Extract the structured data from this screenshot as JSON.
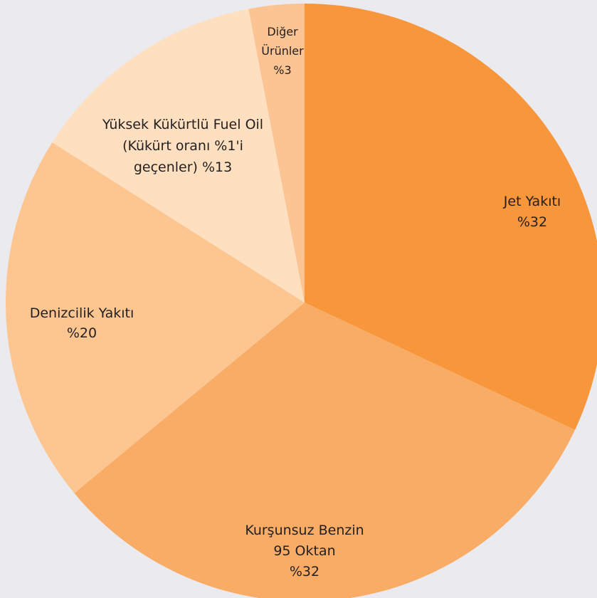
{
  "chart_data": {
    "type": "pie",
    "categories": [
      [
        "Jet Yakıtı"
      ],
      [
        "Kurşunsuz Benzin",
        "95 Oktan"
      ],
      [
        "Denizcilik Yakıtı"
      ],
      [
        "Yüksek Kükürtlü Fuel Oil",
        "(Kükürt oranı %1'i",
        "geçenler)"
      ],
      [
        "Diğer",
        "Ürünler"
      ]
    ],
    "values": [
      32,
      32,
      20,
      13,
      3
    ],
    "value_labels": [
      "%32",
      "%32",
      "%20",
      "%13",
      "%3"
    ],
    "colors": [
      "#f7963a",
      "#f9ac66",
      "#fdc691",
      "#fee0c0",
      "#fcc493"
    ]
  }
}
